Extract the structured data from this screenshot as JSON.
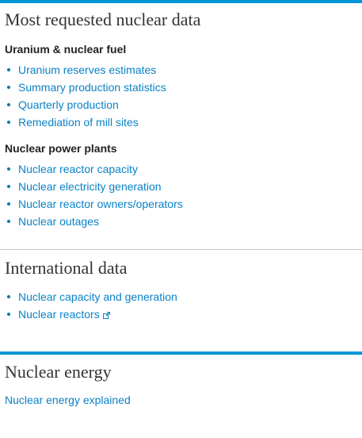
{
  "colors": {
    "accent_rule": "#0096d6",
    "link": "#0a82c5",
    "divider": "#c8c8c8"
  },
  "most_requested": {
    "title": "Most requested nuclear data",
    "groups": [
      {
        "heading": "Uranium & nuclear fuel",
        "links": [
          "Uranium reserves estimates",
          "Summary production statistics",
          "Quarterly production",
          "Remediation of mill sites"
        ]
      },
      {
        "heading": "Nuclear power plants",
        "links": [
          "Nuclear reactor capacity",
          "Nuclear electricity generation",
          "Nuclear reactor owners/operators",
          "Nuclear outages"
        ]
      }
    ]
  },
  "international": {
    "title": "International data",
    "links": [
      "Nuclear capacity and generation",
      "Nuclear reactors"
    ],
    "external_link_icon": "external-link-icon"
  },
  "nuclear_energy": {
    "title": "Nuclear energy",
    "link": "Nuclear energy explained"
  }
}
